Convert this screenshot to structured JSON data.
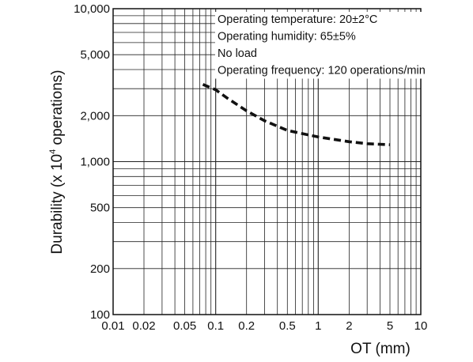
{
  "chart_data": {
    "type": "line",
    "title": "",
    "xlabel": "OT (mm)",
    "ylabel_main": "Durability  (x 10",
    "ylabel_exp": "4",
    "ylabel_tail": " operations)",
    "xscale": "log",
    "yscale": "log",
    "xlim": [
      0.01,
      10
    ],
    "ylim": [
      100,
      10000
    ],
    "grid": true,
    "x_ticks": [
      0.01,
      0.02,
      0.05,
      0.1,
      0.2,
      0.5,
      1,
      2,
      5,
      10
    ],
    "x_tick_labels": [
      "0.01",
      "0.02",
      "0.05",
      "0.1",
      "0.2",
      "0.5",
      "1",
      "2",
      "5",
      "10"
    ],
    "y_ticks": [
      100,
      200,
      500,
      1000,
      2000,
      5000,
      10000
    ],
    "y_tick_labels": [
      "100",
      "200",
      "500",
      "1,000",
      "2,000",
      "5,000",
      "10,000"
    ],
    "conditions": [
      "Operating temperature: 20±2°C",
      "Operating humidity: 65±5%",
      "No load",
      "Operating frequency: 120 operations/min"
    ],
    "series": [
      {
        "line_style": "dashed",
        "color": "#111111",
        "x": [
          0.075,
          0.1,
          0.13,
          0.2,
          0.3,
          0.5,
          1,
          2,
          3,
          5
        ],
        "y": [
          3200,
          2950,
          2600,
          2150,
          1850,
          1600,
          1450,
          1350,
          1310,
          1290
        ]
      }
    ]
  }
}
